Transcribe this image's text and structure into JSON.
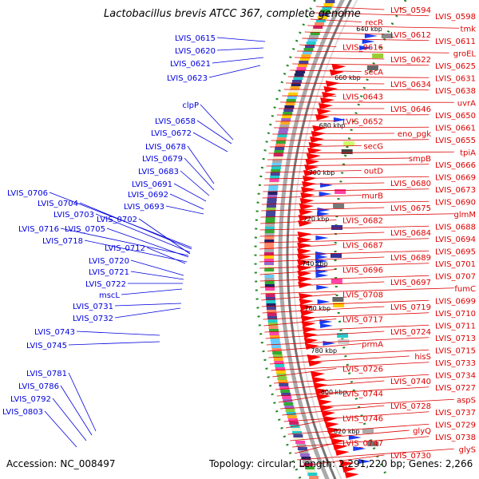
{
  "title": "Lactobacillus brevis ATCC 367, complete genome",
  "footer": {
    "accession_label": "Accession:",
    "accession": "NC_008497",
    "topology_label": "Topology:",
    "topology": "circular;",
    "length_label": "Length:",
    "length": "2,291,220 bp;",
    "genes_label": "Genes:",
    "genes": "2,266"
  },
  "colors": {
    "left_labels": "#0000dd",
    "right_labels": "#dd0000",
    "backbone": "#888888",
    "forward_features": "#1a3cf0",
    "reverse_features": "#ff0000",
    "tick_dots": "#228822"
  },
  "kbp_ticks": [
    "640 kbp",
    "660 kbp",
    "680 kbp",
    "700 kbp",
    "720 kbp",
    "740 kbp",
    "760 kbp",
    "780 kbp",
    "800 kbp",
    "820 kbp"
  ],
  "left_genes": [
    "LVIS_0615",
    "LVIS_0620",
    "LVIS_0621",
    "LVIS_0623",
    "clpP",
    "LVIS_0658",
    "LVIS_0672",
    "LVIS_0678",
    "LVIS_0679",
    "LVIS_0683",
    "LVIS_0691",
    "LVIS_0692",
    "LVIS_0693",
    "LVIS_0706",
    "LVIS_0704",
    "LVIS_0703",
    "LVIS_0702",
    "LVIS_0716",
    "LVIS_0705",
    "LVIS_0718",
    "LVIS_0712",
    "LVIS_0720",
    "LVIS_0721",
    "LVIS_0722",
    "mscL",
    "LVIS_0731",
    "LVIS_0732",
    "LVIS_0743",
    "LVIS_0745",
    "LVIS_0781",
    "LVIS_0786",
    "LVIS_0792",
    "LVIS_0803"
  ],
  "right_genes": [
    "LVIS_0594",
    "LVIS_0598",
    "recR",
    "tmk",
    "LVIS_0612",
    "LVIS_0611",
    "LVIS_0616",
    "groEL",
    "LVIS_0622",
    "LVIS_0625",
    "secA",
    "LVIS_0631",
    "LVIS_0634",
    "LVIS_0638",
    "LVIS_0643",
    "uvrA",
    "LVIS_0646",
    "LVIS_0650",
    "LVIS_0652",
    "LVIS_0661",
    "eno_pgk",
    "LVIS_0655",
    "secG",
    "tpiA",
    "smpB",
    "LVIS_0666",
    "outD",
    "LVIS_0669",
    "LVIS_0680",
    "LVIS_0673",
    "murB",
    "LVIS_0690",
    "LVIS_0675",
    "glmM",
    "LVIS_0682",
    "LVIS_0688",
    "LVIS_0684",
    "LVIS_0694",
    "LVIS_0687",
    "LVIS_0695",
    "LVIS_0689",
    "LVIS_0701",
    "LVIS_0696",
    "LVIS_0707",
    "LVIS_0697",
    "fumC",
    "LVIS_0708",
    "LVIS_0699",
    "LVIS_0719",
    "LVIS_0710",
    "LVIS_0717",
    "LVIS_0711",
    "LVIS_0724",
    "LVIS_0713",
    "prmA",
    "LVIS_0715",
    "hisS",
    "LVIS_0733",
    "LVIS_0726",
    "LVIS_0734",
    "LVIS_0740",
    "LVIS_0727",
    "LVIS_0744",
    "aspS",
    "LVIS_0728",
    "LVIS_0737",
    "LVIS_0746",
    "LVIS_0729",
    "glyQ",
    "LVIS_0738",
    "LVIS_0747",
    "glyS",
    "LVIS_0730"
  ]
}
